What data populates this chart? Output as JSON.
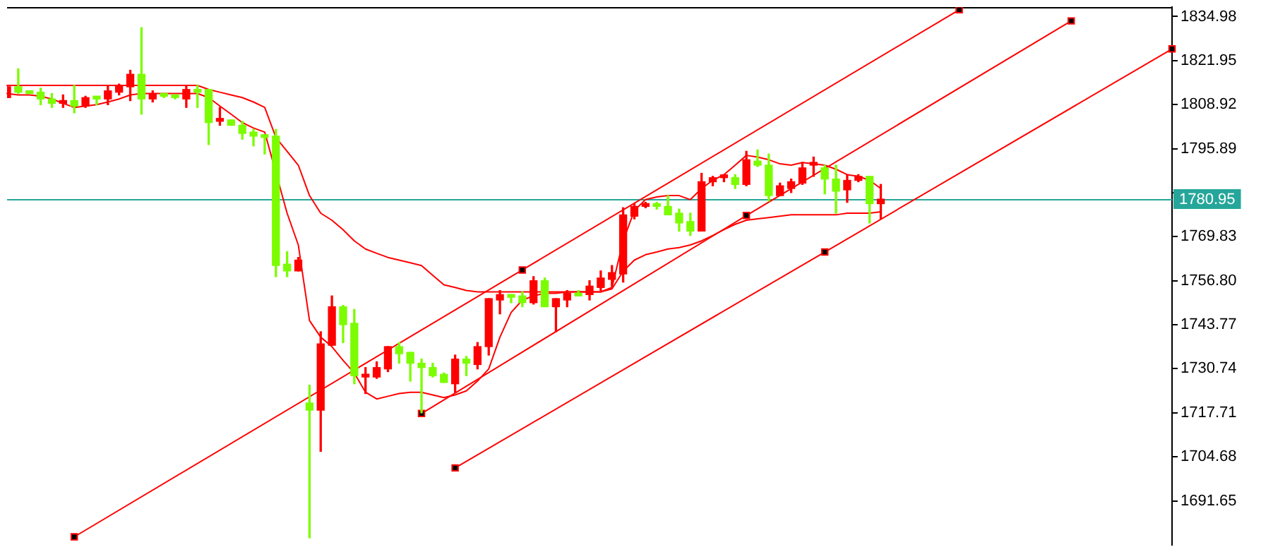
{
  "chart_data": {
    "type": "candlestick",
    "categories": [
      null,
      null,
      null,
      null,
      null,
      null,
      null,
      null,
      null,
      null,
      null,
      null,
      null,
      null,
      null,
      null,
      null,
      null,
      null,
      null,
      null,
      null,
      null,
      null,
      null,
      null,
      null,
      null,
      null,
      null,
      null,
      null,
      null,
      null,
      null,
      null,
      null,
      null,
      null,
      null,
      null,
      null,
      null,
      null,
      null,
      null,
      null,
      null,
      null,
      null,
      null,
      null,
      null,
      null,
      null,
      null,
      null,
      null,
      null,
      null,
      null,
      null,
      null,
      null,
      null,
      null,
      null,
      null,
      null,
      null,
      null,
      null,
      null,
      null,
      null,
      null,
      null,
      null,
      null,
      null,
      null,
      null,
      null,
      null,
      null,
      null,
      null,
      null,
      null,
      null,
      null,
      null,
      null,
      null,
      null,
      null,
      null,
      null,
      null,
      null,
      null,
      null,
      null,
      null,
      null
    ],
    "ohlc": [
      [
        1811.0,
        1814.2,
        1811.0,
        1814.2
      ],
      [
        1814.2,
        1819.5,
        1812.2,
        1812.6
      ],
      [
        1813.0,
        1813.0,
        1812.2,
        1812.2
      ],
      [
        1812.6,
        1813.8,
        1808.9,
        1810.6
      ],
      [
        1810.6,
        1812.2,
        1808.1,
        1809.3
      ],
      [
        1809.3,
        1811.8,
        1808.1,
        1810.1
      ],
      [
        1810.1,
        1814.6,
        1806.5,
        1808.5
      ],
      [
        1808.5,
        1811.4,
        1808.1,
        1811.0
      ],
      [
        1811.0,
        1811.0,
        1808.9,
        1810.6
      ],
      [
        1810.6,
        1814.6,
        1808.9,
        1813.0
      ],
      [
        1812.6,
        1815.0,
        1811.8,
        1814.6
      ],
      [
        1814.2,
        1819.1,
        1810.1,
        1817.9
      ],
      [
        1817.9,
        1831.7,
        1806.1,
        1810.6
      ],
      [
        1810.6,
        1813.0,
        1809.7,
        1812.2
      ],
      [
        1811.8,
        1812.2,
        1811.0,
        1811.4
      ],
      [
        1811.4,
        1811.8,
        1810.6,
        1811.0
      ],
      [
        1810.6,
        1814.6,
        1808.1,
        1813.4
      ],
      [
        1813.4,
        1814.6,
        1808.1,
        1812.6
      ],
      [
        1813.4,
        1813.4,
        1797.1,
        1803.6
      ],
      [
        1804.0,
        1808.1,
        1802.8,
        1804.4
      ],
      [
        1804.4,
        1804.4,
        1802.8,
        1802.8
      ],
      [
        1802.8,
        1804.0,
        1798.7,
        1800.4
      ],
      [
        1800.8,
        1801.6,
        1796.7,
        1799.6
      ],
      [
        1800.0,
        1800.0,
        1794.3,
        1799.2
      ],
      [
        1799.6,
        1801.6,
        1758.0,
        1761.3
      ],
      [
        1761.7,
        1765.4,
        1758.0,
        1759.7
      ],
      [
        1759.7,
        1763.7,
        1759.7,
        1762.9
      ],
      [
        1720.6,
        1725.9,
        1680.7,
        1718.5
      ],
      [
        1718.5,
        1741.7,
        1706.3,
        1738.1
      ],
      [
        1737.7,
        1752.3,
        1737.7,
        1749.1
      ],
      [
        1749.1,
        1749.5,
        1738.5,
        1743.8
      ],
      [
        1744.2,
        1748.3,
        1726.3,
        1728.7
      ],
      [
        1728.3,
        1731.1,
        1723.4,
        1728.7
      ],
      [
        1728.3,
        1732.8,
        1727.9,
        1731.1
      ],
      [
        1730.7,
        1737.3,
        1729.9,
        1737.3
      ],
      [
        1737.3,
        1738.5,
        1732.4,
        1735.2
      ],
      [
        1735.6,
        1735.6,
        1727.1,
        1732.4
      ],
      [
        1732.4,
        1733.6,
        1717.7,
        1731.1
      ],
      [
        1731.1,
        1732.4,
        1728.3,
        1728.7
      ],
      [
        1729.1,
        1729.5,
        1726.7,
        1726.7
      ],
      [
        1726.3,
        1734.8,
        1723.8,
        1733.6
      ],
      [
        1733.6,
        1734.4,
        1728.7,
        1732.4
      ],
      [
        1732.0,
        1738.5,
        1730.7,
        1737.3
      ],
      [
        1737.3,
        1751.5,
        1734.8,
        1751.5
      ],
      [
        1751.1,
        1753.9,
        1747.0,
        1752.7
      ],
      [
        1752.7,
        1752.7,
        1750.3,
        1751.9
      ],
      [
        1752.3,
        1753.5,
        1749.1,
        1750.3
      ],
      [
        1750.3,
        1758.0,
        1749.9,
        1756.8
      ],
      [
        1756.8,
        1757.6,
        1749.1,
        1749.1
      ],
      [
        1749.1,
        1751.5,
        1741.7,
        1751.5
      ],
      [
        1751.1,
        1753.9,
        1749.1,
        1753.1
      ],
      [
        1752.7,
        1753.9,
        1752.3,
        1752.3
      ],
      [
        1752.7,
        1756.8,
        1751.1,
        1755.2
      ],
      [
        1754.8,
        1759.7,
        1753.9,
        1757.6
      ],
      [
        1757.2,
        1761.3,
        1755.2,
        1759.2
      ],
      [
        1758.8,
        1778.4,
        1756.4,
        1776.3
      ],
      [
        1775.9,
        1779.6,
        1775.1,
        1778.8
      ],
      [
        1778.8,
        1780.0,
        1778.4,
        1779.6
      ],
      [
        1779.2,
        1780.0,
        1778.0,
        1778.8
      ],
      [
        1778.8,
        1782.0,
        1776.3,
        1776.3
      ],
      [
        1776.8,
        1778.0,
        1771.5,
        1773.9
      ],
      [
        1774.3,
        1776.8,
        1770.2,
        1771.5
      ],
      [
        1771.5,
        1788.6,
        1771.5,
        1786.1
      ],
      [
        1786.1,
        1787.7,
        1784.9,
        1787.3
      ],
      [
        1787.3,
        1788.2,
        1786.1,
        1787.7
      ],
      [
        1787.3,
        1788.2,
        1784.1,
        1785.3
      ],
      [
        1785.3,
        1795.1,
        1784.9,
        1792.6
      ],
      [
        1792.2,
        1795.5,
        1790.6,
        1791.0
      ],
      [
        1791.0,
        1794.3,
        1780.4,
        1782.0
      ],
      [
        1782.0,
        1785.7,
        1782.0,
        1784.9
      ],
      [
        1784.1,
        1786.9,
        1782.9,
        1786.1
      ],
      [
        1785.7,
        1791.8,
        1785.3,
        1790.2
      ],
      [
        1791.0,
        1793.4,
        1787.7,
        1791.4
      ],
      [
        1790.2,
        1791.0,
        1782.5,
        1786.9
      ],
      [
        1786.9,
        1791.0,
        1776.8,
        1783.3
      ],
      [
        1783.7,
        1788.2,
        1780.0,
        1786.5
      ],
      [
        1786.5,
        1788.2,
        1786.1,
        1787.7
      ],
      [
        1787.7,
        1787.7,
        1773.9,
        1779.6
      ],
      [
        1779.6,
        1785.3,
        1775.1,
        1780.95
      ],
      null,
      null,
      null,
      null,
      null,
      null,
      null,
      null,
      null,
      null,
      null,
      null,
      null,
      null,
      null,
      null,
      null,
      null,
      null,
      null,
      null,
      null,
      null,
      null,
      null,
      null
    ],
    "colors": [
      "#ff0000",
      "#7cfc00",
      "#7cfc00",
      "#7cfc00",
      "#7cfc00",
      "#ff0000",
      "#7cfc00",
      "#ff0000",
      "#7cfc00",
      "#ff0000",
      "#ff0000",
      "#ff0000",
      "#7cfc00",
      "#ff0000",
      "#7cfc00",
      "#7cfc00",
      "#ff0000",
      "#7cfc00",
      "#7cfc00",
      "#ff0000",
      "#7cfc00",
      "#7cfc00",
      "#7cfc00",
      "#7cfc00",
      "#7cfc00",
      "#7cfc00",
      "#ff0000",
      "#7cfc00",
      "#ff0000",
      "#ff0000",
      "#7cfc00",
      "#7cfc00",
      "#ff0000",
      "#ff0000",
      "#ff0000",
      "#7cfc00",
      "#7cfc00",
      "#7cfc00",
      "#7cfc00",
      "#7cfc00",
      "#ff0000",
      "#7cfc00",
      "#ff0000",
      "#ff0000",
      "#ff0000",
      "#7cfc00",
      "#7cfc00",
      "#ff0000",
      "#7cfc00",
      "#ff0000",
      "#ff0000",
      "#7cfc00",
      "#ff0000",
      "#ff0000",
      "#ff0000",
      "#ff0000",
      "#ff0000",
      "#ff0000",
      "#7cfc00",
      "#7cfc00",
      "#7cfc00",
      "#7cfc00",
      "#ff0000",
      "#ff0000",
      "#ff0000",
      "#7cfc00",
      "#ff0000",
      "#7cfc00",
      "#7cfc00",
      "#ff0000",
      "#ff0000",
      "#ff0000",
      "#ff0000",
      "#7cfc00",
      "#7cfc00",
      "#ff0000",
      "#ff0000",
      "#7cfc00",
      "#ff0000",
      null,
      null,
      null,
      null,
      null,
      null,
      null,
      null,
      null,
      null,
      null,
      null,
      null,
      null,
      null,
      null,
      null,
      null,
      null,
      null,
      null,
      null,
      null,
      null,
      null,
      null
    ],
    "series": [
      {
        "type": "line",
        "color": "#ff0000",
        "values": [
          1814.6,
          1814.6,
          1814.6,
          1814.6,
          1814.6,
          1814.6,
          1814.6,
          1814.6,
          1814.6,
          1814.6,
          1814.6,
          1814.6,
          1814.6,
          1814.6,
          1814.6,
          1814.6,
          1814.6,
          1814.6,
          1813.4,
          1812.6,
          1811.8,
          1811.0,
          1809.7,
          1808.1,
          1799.2,
          1795.1,
          1791.0,
          1782.0,
          1776.8,
          1774.7,
          1771.9,
          1768.6,
          1766.2,
          1764.9,
          1763.7,
          1762.9,
          1762.1,
          1761.3,
          1758.4,
          1755.6,
          1754.8,
          1753.9,
          1753.5,
          1753.5,
          1753.5,
          1753.5,
          1753.5,
          1753.5,
          1753.5,
          1753.5,
          1753.5,
          1753.5,
          1753.5,
          1753.5,
          1754.8,
          1768.6,
          1777.6,
          1780.8,
          1781.6,
          1782.0,
          1782.0,
          1780.8,
          1784.1,
          1786.5,
          1788.2,
          1791.0,
          1793.9,
          1793.4,
          1792.6,
          1791.4,
          1791.0,
          1791.8,
          1791.4,
          1791.0,
          1789.8,
          1788.2,
          1787.7,
          1786.5,
          1784.1,
          null,
          null,
          null,
          null,
          null,
          null,
          null,
          null,
          null,
          null,
          null,
          null,
          null,
          null,
          null,
          null,
          null,
          null,
          null,
          null,
          null,
          null,
          null,
          null,
          null,
          null
        ]
      },
      {
        "type": "line",
        "color": "#ff0000",
        "values": [
          1812.2,
          1811.8,
          1811.8,
          1811.4,
          1810.6,
          1809.3,
          1808.1,
          1808.5,
          1808.9,
          1809.7,
          1810.6,
          1811.8,
          1812.2,
          1812.2,
          1812.2,
          1812.2,
          1812.2,
          1812.2,
          1811.0,
          1808.5,
          1806.1,
          1803.6,
          1802.0,
          1800.8,
          null,
          1776.8,
          1767.4,
          1745.0,
          1740.1,
          1737.3,
          1733.2,
          1729.5,
          1723.8,
          1721.8,
          1722.6,
          1723.4,
          1723.8,
          1723.8,
          1723.0,
          1722.2,
          1723.0,
          1724.2,
          1727.1,
          1730.7,
          1740.1,
          1747.4,
          1751.1,
          1752.3,
          1753.1,
          1753.1,
          1753.5,
          1753.5,
          1753.5,
          1753.5,
          1754.4,
          1759.6,
          1762.9,
          1764.5,
          1765.3,
          1766.2,
          1766.6,
          1767.4,
          1768.6,
          1770.2,
          1771.9,
          1773.5,
          1774.7,
          1775.1,
          1775.5,
          1775.9,
          1776.3,
          1776.3,
          1776.3,
          1776.3,
          1776.3,
          1776.8,
          1776.8,
          1776.8,
          1777.2,
          null,
          null,
          null,
          null,
          null,
          null,
          null,
          null,
          null,
          null,
          null,
          null,
          null,
          null,
          null,
          null,
          null,
          null,
          null,
          null,
          null,
          null,
          null,
          null,
          null,
          null
        ]
      },
      {
        "type": "line",
        "color": "#ff0000",
        "marker": "square",
        "values": [
          null,
          null,
          null,
          null,
          null,
          null,
          1681.0,
          null,
          null,
          null,
          null,
          null,
          null,
          null,
          null,
          null,
          null,
          null,
          null,
          null,
          null,
          null,
          null,
          null,
          null,
          null,
          null,
          null,
          null,
          null,
          null,
          null,
          null,
          null,
          null,
          null,
          null,
          null,
          null,
          null,
          null,
          null,
          null,
          null,
          null,
          null,
          1760.0,
          null,
          null,
          null,
          null,
          null,
          null,
          null,
          null,
          null,
          null,
          null,
          null,
          null,
          null,
          null,
          null,
          null,
          null,
          null,
          null,
          null,
          null,
          null,
          null,
          null,
          null,
          null,
          null,
          null,
          null,
          null,
          null,
          null,
          null,
          null,
          null,
          null,
          null,
          1837.0,
          null,
          null,
          null,
          null,
          null,
          null,
          null,
          null,
          null,
          null,
          null,
          null,
          null,
          null,
          null,
          null,
          null,
          null,
          null
        ]
      },
      {
        "type": "line",
        "color": "#ff0000",
        "marker": "square",
        "values": [
          null,
          null,
          null,
          null,
          null,
          null,
          null,
          null,
          null,
          null,
          null,
          null,
          null,
          null,
          null,
          null,
          null,
          null,
          null,
          null,
          null,
          null,
          null,
          null,
          null,
          null,
          null,
          null,
          null,
          null,
          null,
          null,
          null,
          null,
          null,
          null,
          null,
          1717.5,
          null,
          null,
          null,
          null,
          null,
          null,
          null,
          null,
          null,
          null,
          null,
          null,
          null,
          null,
          null,
          null,
          null,
          null,
          null,
          null,
          null,
          null,
          null,
          null,
          null,
          null,
          null,
          null,
          1776.1,
          null,
          null,
          null,
          null,
          null,
          null,
          null,
          null,
          null,
          null,
          null,
          null,
          null,
          null,
          null,
          null,
          null,
          null,
          null,
          null,
          null,
          null,
          null,
          null,
          null,
          null,
          null,
          null,
          1833.7,
          null,
          null,
          null,
          null,
          null,
          null,
          null,
          null,
          null
        ]
      },
      {
        "type": "line",
        "color": "#ff0000",
        "marker": "square",
        "values": [
          null,
          null,
          null,
          null,
          null,
          null,
          null,
          null,
          null,
          null,
          null,
          null,
          null,
          null,
          null,
          null,
          null,
          null,
          null,
          null,
          null,
          null,
          null,
          null,
          null,
          null,
          null,
          null,
          null,
          null,
          null,
          null,
          null,
          null,
          null,
          null,
          null,
          null,
          null,
          null,
          1701.4,
          null,
          null,
          null,
          null,
          null,
          null,
          null,
          null,
          null,
          null,
          null,
          null,
          null,
          null,
          null,
          null,
          null,
          null,
          null,
          null,
          null,
          null,
          null,
          null,
          null,
          null,
          null,
          null,
          null,
          null,
          null,
          null,
          1765.3,
          null,
          null,
          null,
          null,
          null,
          null,
          null,
          null,
          null,
          null,
          null,
          null,
          null,
          null,
          null,
          null,
          null,
          null,
          null,
          null,
          null,
          null,
          null,
          null,
          null,
          null,
          null,
          null,
          null,
          null,
          1825.4
        ]
      }
    ],
    "ylim": [
      1678.6,
      1837.8
    ],
    "yticks": [
      1834.98,
      1821.95,
      1808.92,
      1795.89,
      {
        "value": 1782.86,
        "label": null
      },
      1769.83,
      {
        "value": 1756.8,
        "label": "1756.80"
      },
      1743.77,
      1730.74,
      1717.71,
      1704.68,
      1691.65
    ],
    "tick_labels": "y",
    "grid": false,
    "legend": false,
    "ref_lines": [
      {
        "axis": "y",
        "value": 1780.95,
        "label": "1780.95",
        "color": "#26a69a"
      }
    ]
  }
}
